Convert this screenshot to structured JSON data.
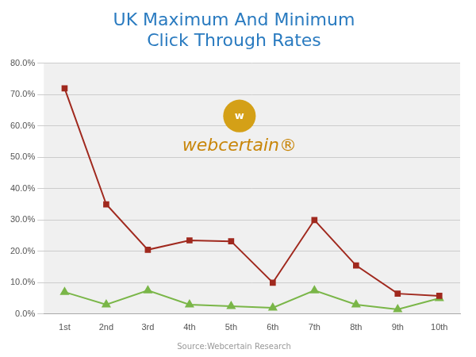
{
  "chart_data": {
    "type": "line",
    "title": [
      "UK Maximum And Minimum",
      "Click Through Rates"
    ],
    "categories": [
      "1st",
      "2nd",
      "3rd",
      "4th",
      "5th",
      "6th",
      "7th",
      "8th",
      "9th",
      "10th"
    ],
    "series": [
      {
        "color": "#A0291E",
        "marker": "square",
        "line_style": "solid",
        "values": [
          0.72,
          0.35,
          0.205,
          0.235,
          0.232,
          0.1,
          0.3,
          0.155,
          0.065,
          0.058
        ]
      },
      {
        "color": "#7AB648",
        "marker": "triangle",
        "line_style": "solid",
        "values": [
          0.07,
          0.03,
          0.075,
          0.03,
          0.025,
          0.02,
          0.075,
          0.03,
          0.015,
          0.05
        ]
      }
    ],
    "ylim": [
      0.0,
      0.8
    ],
    "yticks": [
      {
        "value": 0.0,
        "label": "0.0%"
      },
      {
        "value": 0.1,
        "label": "10.0%"
      },
      {
        "value": 0.2,
        "label": "20.0%"
      },
      {
        "value": 0.3,
        "label": "30.0%"
      },
      {
        "value": 0.4,
        "label": "40.0%"
      },
      {
        "value": 0.5,
        "label": "50.0%"
      },
      {
        "value": 0.6,
        "label": "60.0%"
      },
      {
        "value": 0.7,
        "label": "70.0%"
      },
      {
        "value": 0.8,
        "label": "80.0%"
      }
    ],
    "grid": "y",
    "annotations": [
      {
        "text": "w",
        "color": "#D4A017"
      },
      {
        "text": "webcertain®",
        "color": "#C8860A"
      }
    ],
    "source": "Source:Webcertain Research"
  }
}
